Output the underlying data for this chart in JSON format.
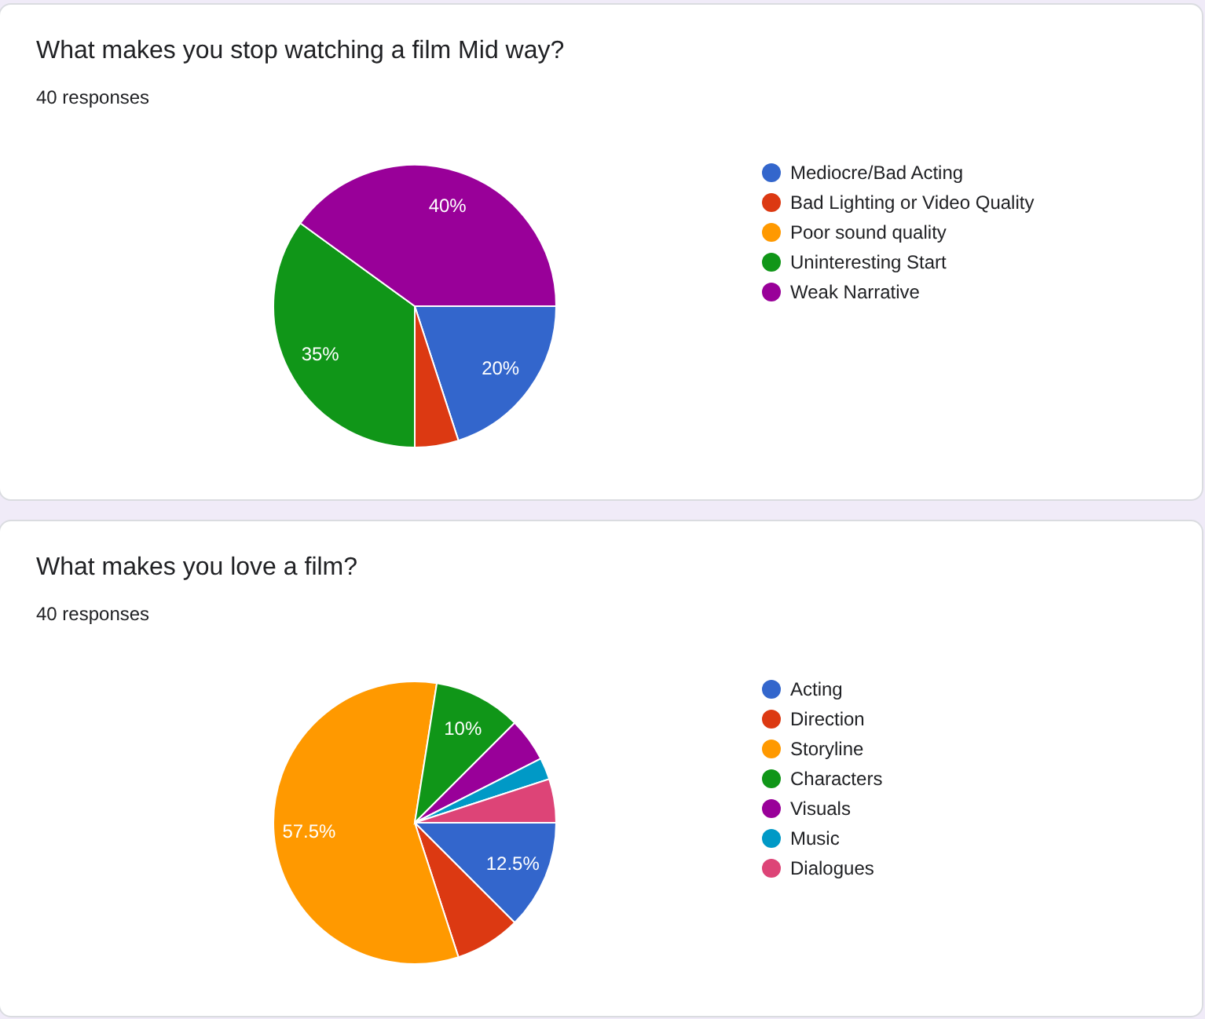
{
  "chart_data": [
    {
      "type": "pie",
      "title": "What makes you stop watching a film Mid way?",
      "subtitle": "40 responses",
      "categories": [
        "Mediocre/Bad Acting",
        "Bad Lighting or Video Quality",
        "Poor sound quality",
        "Uninteresting Start",
        "Weak Narrative"
      ],
      "values": [
        20,
        5,
        0,
        35,
        40
      ],
      "colors": [
        "#3366cc",
        "#dc3912",
        "#ff9900",
        "#109618",
        "#990099"
      ],
      "value_labels": [
        "20%",
        null,
        null,
        "35%",
        "40%"
      ],
      "legend": "right"
    },
    {
      "type": "pie",
      "title": "What makes you love a film?",
      "subtitle": "40 responses",
      "categories": [
        "Acting",
        "Direction",
        "Storyline",
        "Characters",
        "Visuals",
        "Music",
        "Dialogues"
      ],
      "values": [
        12.5,
        7.5,
        57.5,
        10,
        5,
        2.5,
        5
      ],
      "colors": [
        "#3366cc",
        "#dc3912",
        "#ff9900",
        "#109618",
        "#990099",
        "#0099c6",
        "#dd4477"
      ],
      "value_labels": [
        "12.5%",
        null,
        "57.5%",
        "10%",
        null,
        null,
        null
      ],
      "legend": "right"
    }
  ]
}
